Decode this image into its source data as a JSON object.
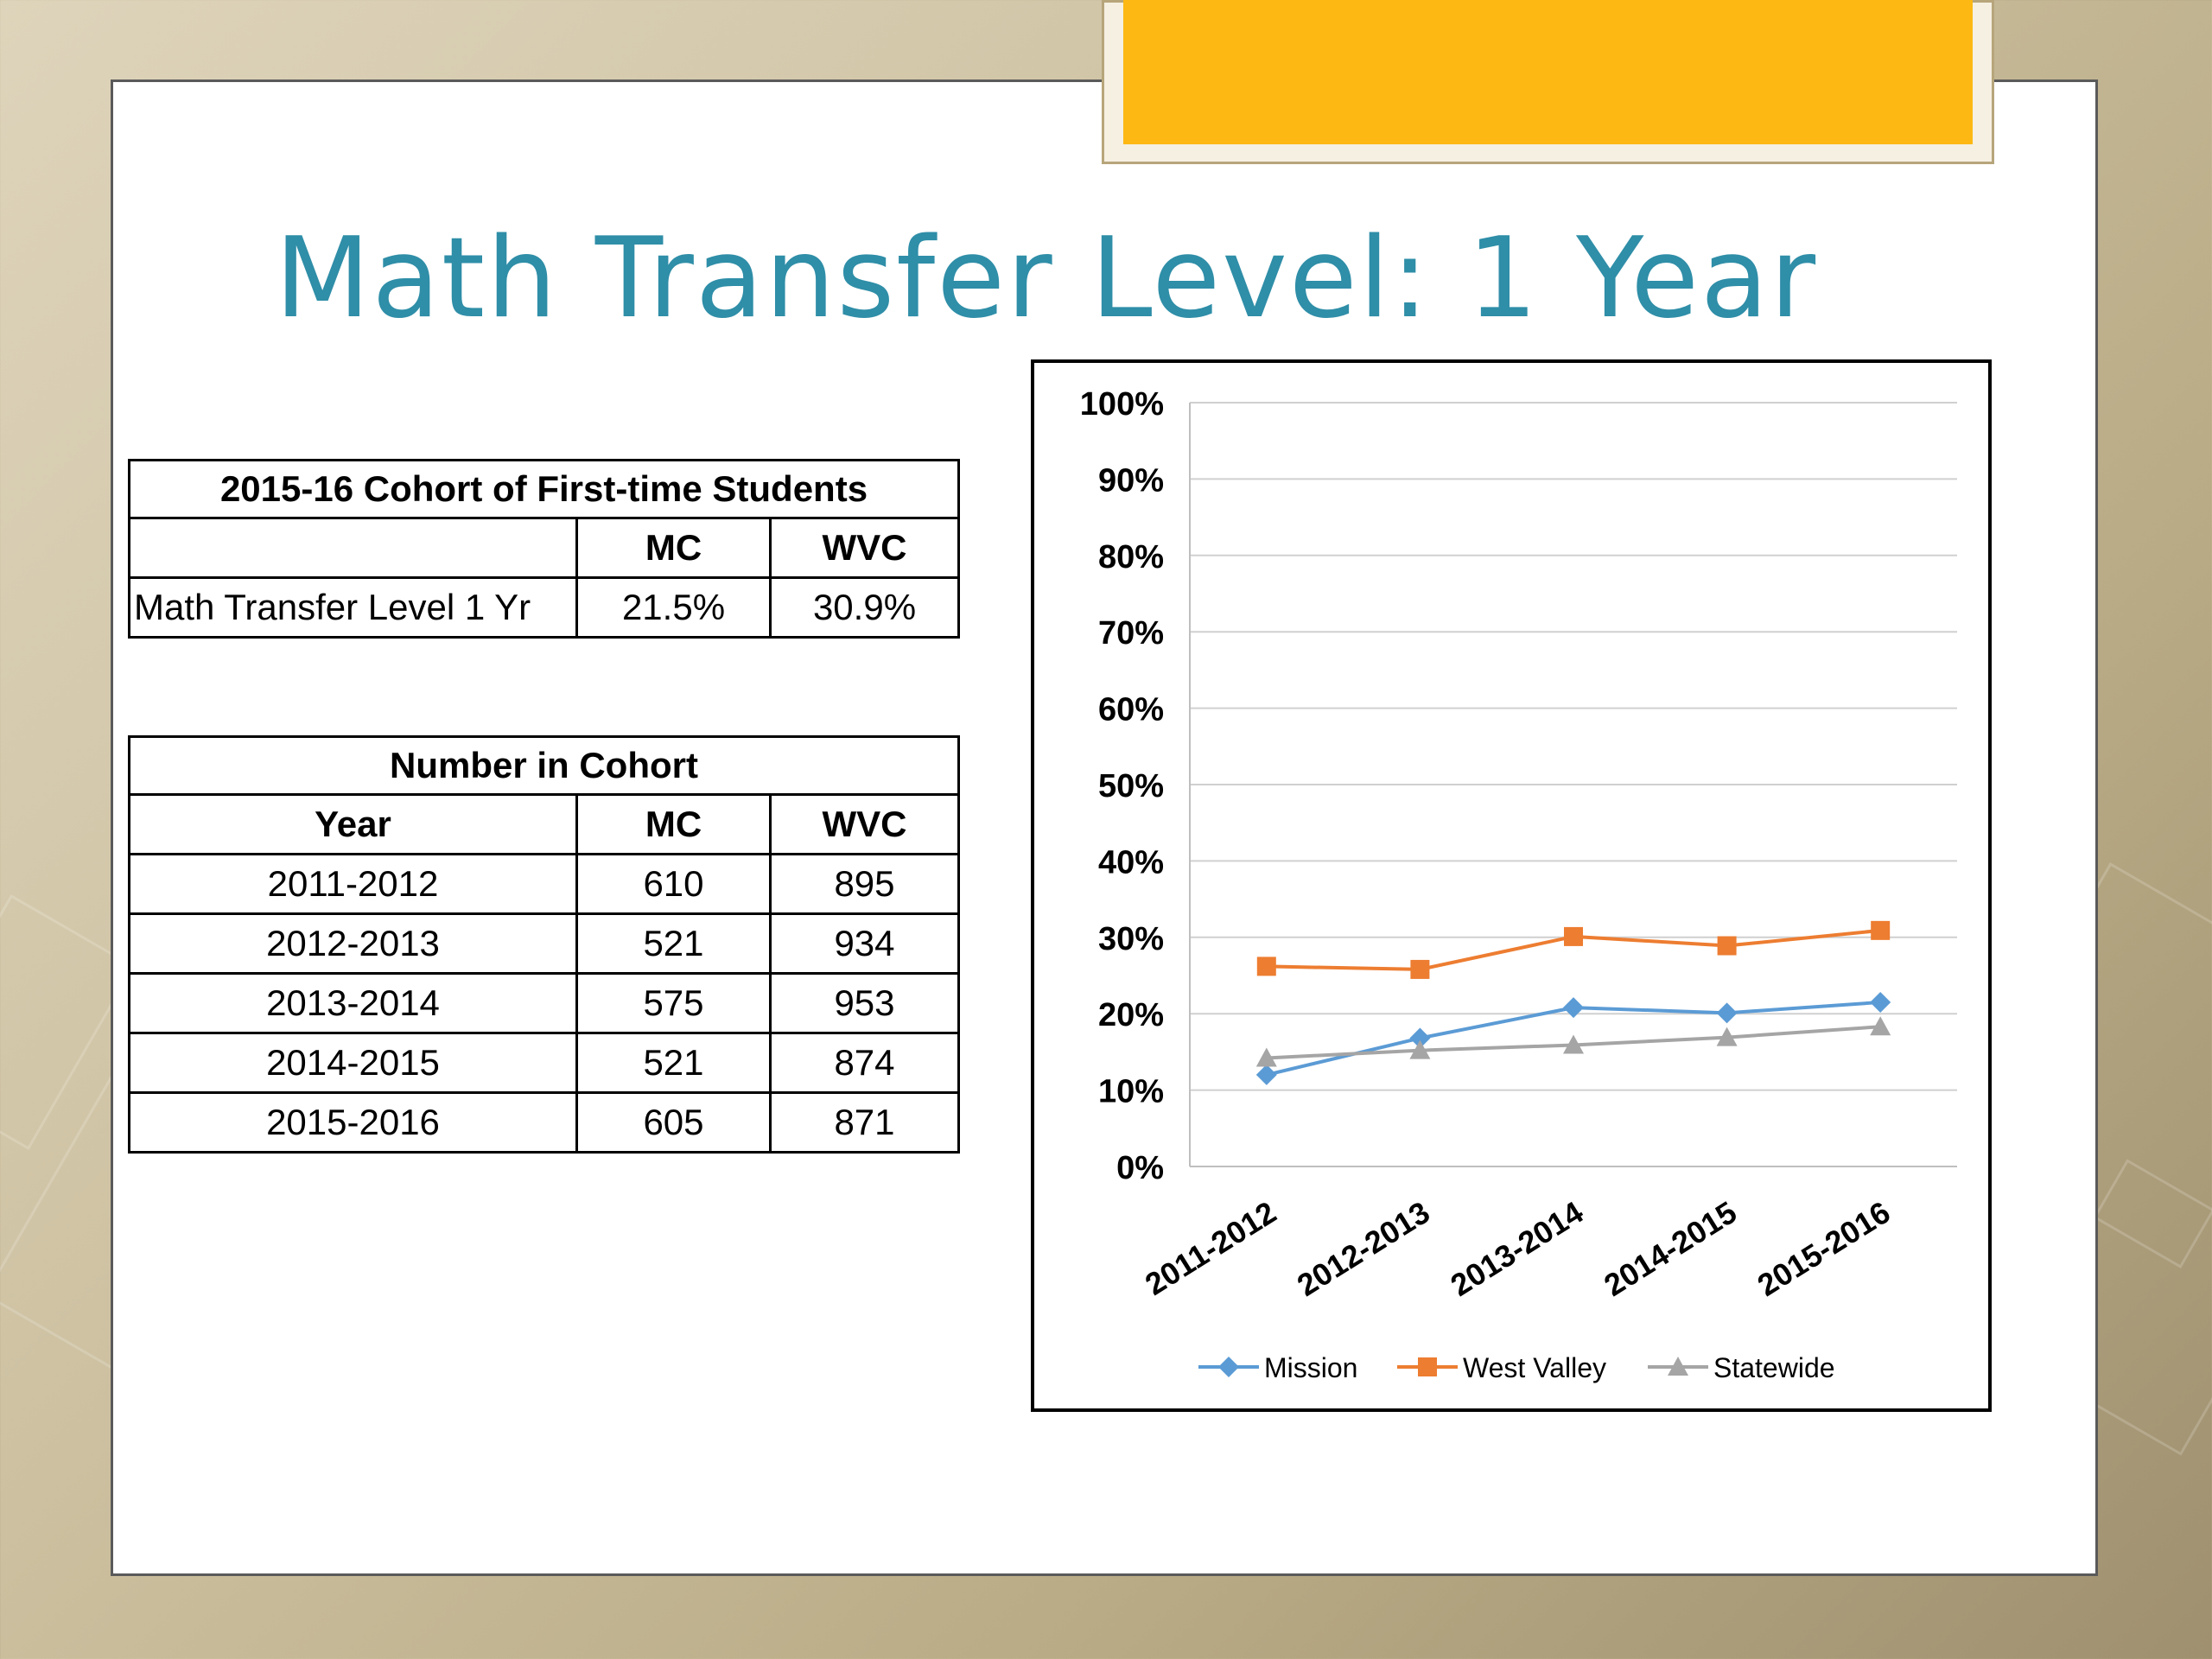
{
  "title": "Math Transfer Level:  1 Year",
  "table1": {
    "header": "2015-16 Cohort of First-time Students",
    "columns": [
      "",
      "MC",
      "WVC"
    ],
    "row": {
      "label": "Math Transfer Level 1 Yr",
      "mc": "21.5%",
      "wvc": "30.9%"
    }
  },
  "table2": {
    "header": "Number in Cohort",
    "columns": [
      "Year",
      "MC",
      "WVC"
    ],
    "rows": [
      {
        "year": "2011-2012",
        "mc": "610",
        "wvc": "895"
      },
      {
        "year": "2012-2013",
        "mc": "521",
        "wvc": "934"
      },
      {
        "year": "2013-2014",
        "mc": "575",
        "wvc": "953"
      },
      {
        "year": "2014-2015",
        "mc": "521",
        "wvc": "874"
      },
      {
        "year": "2015-2016",
        "mc": "605",
        "wvc": "871"
      }
    ]
  },
  "chart_data": {
    "type": "line",
    "title": "",
    "xlabel": "",
    "ylabel": "",
    "categories": [
      "2011-2012",
      "2012-2013",
      "2013-2014",
      "2014-2015",
      "2015-2016"
    ],
    "ylim": [
      0,
      100
    ],
    "yticks": [
      "0%",
      "10%",
      "20%",
      "30%",
      "40%",
      "50%",
      "60%",
      "70%",
      "80%",
      "90%",
      "100%"
    ],
    "grid": true,
    "legend_position": "bottom",
    "series": [
      {
        "name": "Mission",
        "color": "#5b9bd5",
        "marker": "diamond",
        "values": [
          12.0,
          16.8,
          20.8,
          20.1,
          21.5
        ]
      },
      {
        "name": "West Valley",
        "color": "#ed7d31",
        "marker": "square",
        "values": [
          26.2,
          25.8,
          30.1,
          28.9,
          30.9
        ]
      },
      {
        "name": "Statewide",
        "color": "#a5a5a5",
        "marker": "triangle",
        "values": [
          14.2,
          15.2,
          15.9,
          16.9,
          18.3
        ]
      }
    ]
  }
}
